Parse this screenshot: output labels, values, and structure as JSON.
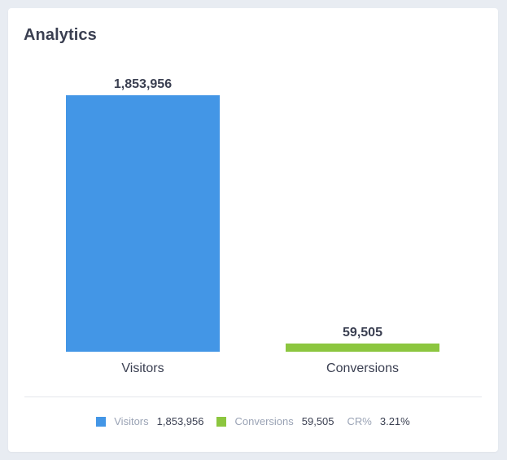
{
  "card": {
    "title": "Analytics"
  },
  "chart_data": {
    "type": "bar",
    "categories": [
      "Visitors",
      "Conversions"
    ],
    "values": [
      1853956,
      59505
    ],
    "value_labels": [
      "1,853,956",
      "59,505"
    ],
    "colors": [
      "#4396e6",
      "#8cc63f"
    ],
    "ylim": [
      0,
      1853956
    ],
    "grid": false,
    "legend": "bottom-center"
  },
  "legend": {
    "items": [
      {
        "name": "Visitors",
        "value": "1,853,956",
        "color": "#4396e6"
      },
      {
        "name": "Conversions",
        "value": "59,505",
        "color": "#8cc63f"
      }
    ],
    "cr": {
      "name": "CR%",
      "value": "3.21%"
    }
  },
  "colors": {
    "text_dark": "#3a3f51",
    "text_muted": "#9aa3b5"
  }
}
